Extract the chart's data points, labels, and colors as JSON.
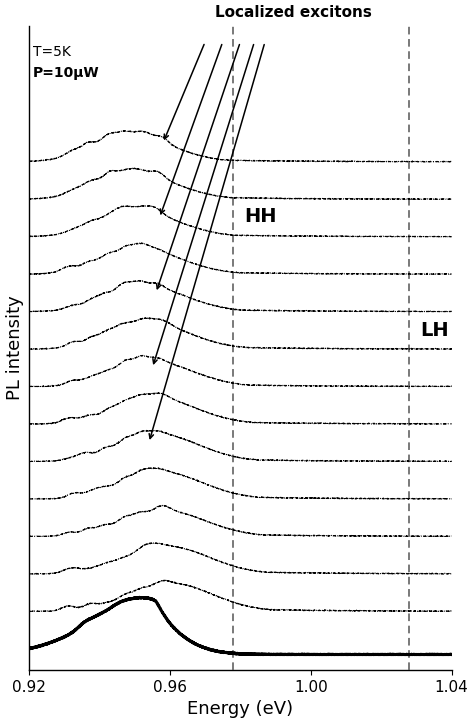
{
  "xlabel": "Energy (eV)",
  "ylabel": "PL intensity",
  "xlim": [
    0.92,
    1.04
  ],
  "x_ticks": [
    0.92,
    0.96,
    1.0,
    1.04
  ],
  "annotation_T": "T=5K",
  "annotation_P": "P=10μW",
  "label_HH": "HH",
  "label_LH": "LH",
  "vline_HH": 0.978,
  "vline_LH": 1.028,
  "localized_label": "Localized excitons",
  "num_spectra": 13,
  "background_color": "#ffffff",
  "seed": 7
}
